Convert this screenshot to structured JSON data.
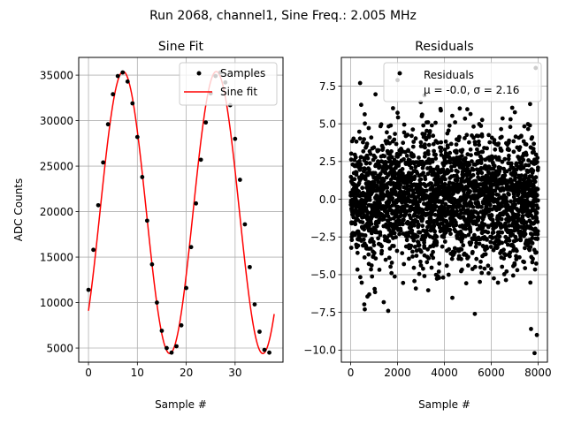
{
  "figure": {
    "suptitle": "Run 2068, channel1, Sine Freq.: 2.005 MHz"
  },
  "chart_data": [
    {
      "type": "scatter",
      "title": "Sine Fit",
      "xlabel": "Sample #",
      "ylabel": "ADC Counts",
      "xlim": [
        -2,
        39.8
      ],
      "ylim": [
        3450,
        36950
      ],
      "xticks": [
        0,
        10,
        20,
        30
      ],
      "yticks": [
        5000,
        10000,
        15000,
        20000,
        25000,
        30000,
        35000
      ],
      "grid": true,
      "legend": {
        "placement": "top-right",
        "entries": [
          "Samples",
          "Sine fit"
        ]
      },
      "colors": {
        "samples": "#000000",
        "fit": "#ff0000",
        "grid": "#b0b0b0"
      },
      "series": [
        {
          "name": "Samples",
          "x": [
            0,
            1,
            2,
            3,
            4,
            5,
            6,
            7,
            8,
            9,
            10,
            11,
            12,
            13,
            14,
            15,
            16,
            17,
            18,
            19,
            20,
            21,
            22,
            23,
            24,
            25,
            26,
            27,
            28,
            29,
            30,
            31,
            32,
            33,
            34,
            35,
            36,
            37
          ],
          "y": [
            11400,
            15800,
            20700,
            25400,
            29600,
            32900,
            34900,
            35300,
            34300,
            31900,
            28200,
            23800,
            19000,
            14200,
            10000,
            6900,
            5000,
            4500,
            5200,
            7500,
            11600,
            16100,
            20900,
            25700,
            29800,
            33000,
            34900,
            35300,
            34200,
            31700,
            28000,
            23500,
            18600,
            13900,
            9800,
            6800,
            4800,
            4500
          ]
        },
        {
          "name": "Sine fit",
          "function": "sine",
          "offset": 19900,
          "amplitude": 15500,
          "period_samples": 19.05,
          "peak_x": 7.1,
          "x_range": [
            0,
            38
          ]
        }
      ]
    },
    {
      "type": "scatter",
      "title": "Residuals",
      "xlabel": "Sample #",
      "xlim": [
        -400,
        8400
      ],
      "ylim": [
        -10.8,
        9.4
      ],
      "xticks": [
        0,
        2000,
        4000,
        6000,
        8000
      ],
      "yticks": [
        -10.0,
        -7.5,
        -5.0,
        -2.5,
        0.0,
        2.5,
        5.0,
        7.5
      ],
      "grid": true,
      "legend": {
        "placement": "top-right",
        "entries": [
          "Residuals",
          "μ = -0.0, σ = 2.16"
        ]
      },
      "series": [
        {
          "name": "Residuals",
          "n_points": 8000,
          "mean": -0.0,
          "std": 2.16,
          "x_range": [
            0,
            8000
          ],
          "outliers": [
            {
              "x": 400,
              "y": 7.7
            },
            {
              "x": 2000,
              "y": 7.9
            },
            {
              "x": 7900,
              "y": 8.7
            },
            {
              "x": 7700,
              "y": -8.6
            },
            {
              "x": 7850,
              "y": -10.2
            },
            {
              "x": 5300,
              "y": -7.6
            },
            {
              "x": 7950,
              "y": -9.0
            },
            {
              "x": 1600,
              "y": -7.4
            },
            {
              "x": 600,
              "y": -7.3
            }
          ]
        }
      ]
    }
  ]
}
